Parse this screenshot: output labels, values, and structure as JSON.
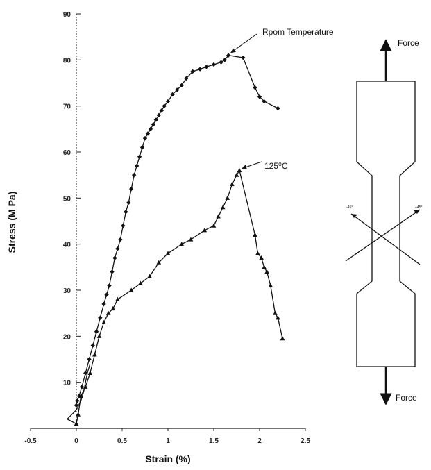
{
  "chart_data": {
    "type": "line",
    "title": "",
    "xlabel": "Strain (%)",
    "ylabel": "Stress (M Pa)",
    "xlim": [
      -0.5,
      2.5
    ],
    "ylim": [
      0,
      90
    ],
    "xticks": [
      -0.5,
      0,
      0.5,
      1,
      1.5,
      2,
      2.5
    ],
    "xtick_labels": [
      "-0.5",
      "0",
      "0.5",
      "1",
      "1.5",
      "2",
      "2.5"
    ],
    "yticks": [
      0,
      10,
      20,
      30,
      40,
      50,
      60,
      70,
      80,
      90
    ],
    "ytick_labels": [
      "",
      "10",
      "20",
      "30",
      "40",
      "50",
      "60",
      "70",
      "80",
      "90"
    ],
    "grid": false,
    "series": [
      {
        "marker": "diamond",
        "color": "#111111",
        "x": [
          0,
          0.01,
          0.03,
          0.06,
          0.1,
          0.14,
          0.18,
          0.22,
          0.26,
          0.3,
          0.33,
          0.36,
          0.39,
          0.42,
          0.45,
          0.48,
          0.51,
          0.54,
          0.57,
          0.6,
          0.63,
          0.66,
          0.69,
          0.72,
          0.75,
          0.78,
          0.81,
          0.84,
          0.87,
          0.9,
          0.93,
          0.96,
          1.0,
          1.05,
          1.1,
          1.15,
          1.2,
          1.27,
          1.35,
          1.42,
          1.5,
          1.58,
          1.62,
          1.66,
          1.82,
          1.95,
          2.0,
          2.05,
          2.2
        ],
        "y": [
          5,
          6,
          7,
          9,
          12,
          15,
          18,
          21,
          24,
          27,
          29,
          31,
          34,
          37,
          39,
          41,
          44,
          47,
          49,
          52,
          55,
          57,
          59,
          61,
          63,
          64,
          65,
          66,
          67,
          68,
          69,
          70,
          71,
          72.5,
          73.5,
          74.5,
          76,
          77.5,
          78,
          78.5,
          79,
          79.5,
          80,
          81,
          80.5,
          74,
          72,
          71,
          69.5
        ]
      },
      {
        "marker": "triangle",
        "color": "#111111",
        "x": [
          0,
          0.02,
          0.05,
          0.1,
          0.15,
          0.2,
          0.25,
          0.3,
          0.35,
          0.4,
          0.45,
          0.6,
          0.7,
          0.8,
          0.9,
          1.0,
          1.15,
          1.25,
          1.4,
          1.5,
          1.55,
          1.6,
          1.65,
          1.7,
          1.75,
          1.78,
          1.95,
          1.98,
          2.02,
          2.05,
          2.08,
          2.12,
          2.17,
          2.2,
          2.25
        ],
        "y": [
          1,
          3,
          7,
          9,
          12,
          16,
          20,
          23,
          25,
          26,
          28,
          30,
          31.5,
          33,
          36,
          38,
          40,
          41,
          43,
          44,
          46,
          48,
          50,
          53,
          55,
          56,
          42,
          38,
          37,
          35,
          34,
          31,
          25,
          24,
          19.5
        ]
      },
      {
        "marker": "none",
        "color": "#111111",
        "x": [
          0,
          -0.1,
          0,
          0.05,
          0.08,
          0.12,
          0.15
        ],
        "y": [
          1,
          2,
          4,
          6,
          8,
          12,
          14
        ]
      }
    ],
    "annotations": [
      {
        "text": "Rpom Temperature",
        "x": 1.65,
        "y": 81
      },
      {
        "text": "125⁰C",
        "x": 1.78,
        "y": 56
      }
    ]
  },
  "specimen": {
    "force_top": "Force",
    "force_bottom": "Force",
    "angle_left": "-45°",
    "angle_right": "+45°"
  }
}
